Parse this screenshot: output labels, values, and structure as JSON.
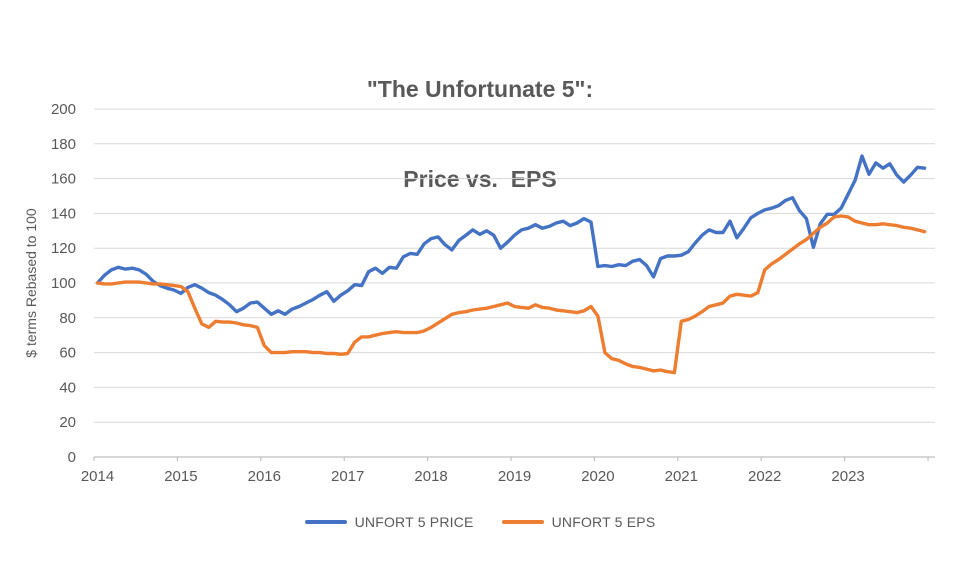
{
  "chart_data": {
    "type": "line",
    "title_line1": "\"The Unfortunate 5\":",
    "title_line2": "Price vs.  EPS",
    "ylabel": "$ terms Rebased to 100",
    "ylim": [
      0,
      200
    ],
    "y_ticks": [
      0,
      20,
      40,
      60,
      80,
      100,
      120,
      140,
      160,
      180,
      200
    ],
    "x_tick_labels": [
      "2014",
      "2015",
      "2016",
      "2017",
      "2018",
      "2019",
      "2020",
      "2021",
      "2022",
      "2023"
    ],
    "x_frequency": "monthly",
    "x_range": "Jan 2014 - Dec 2023",
    "grid": "horizontal",
    "legend_position": "bottom",
    "series": [
      {
        "name": "UNFORT 5 PRICE",
        "color": "#4472C4",
        "values": [
          100,
          104.5,
          107.5,
          109,
          108,
          108.5,
          107.5,
          105,
          101,
          98.5,
          97,
          96,
          94,
          97.5,
          99,
          97,
          94.5,
          93,
          90.5,
          87.5,
          83.5,
          85.5,
          88.5,
          89,
          85.5,
          82,
          84,
          82,
          85,
          86.5,
          88.5,
          90.5,
          93,
          95,
          89.5,
          93,
          95.5,
          99,
          98.5,
          106.5,
          108.5,
          105.5,
          109,
          108.5,
          115,
          117,
          116.5,
          122.5,
          125.5,
          126.5,
          122,
          119,
          124.5,
          127.5,
          130.5,
          128,
          130,
          127.5,
          120,
          123.5,
          127.5,
          130.5,
          131.5,
          133.5,
          131.5,
          132.5,
          134.5,
          135.5,
          133,
          134.5,
          137,
          135,
          109.5,
          110,
          109.5,
          110.5,
          110,
          112.5,
          113.5,
          110,
          103.5,
          114,
          115.5,
          115.5,
          116,
          118,
          123,
          127.5,
          130.5,
          129,
          129,
          135.5,
          126,
          131.5,
          137.5,
          140,
          142,
          143,
          144.5,
          147.5,
          149,
          141.5,
          137,
          120.5,
          134,
          139.5,
          139.5,
          143,
          151,
          159,
          173,
          162.5,
          169,
          166,
          168.5,
          162,
          158,
          162,
          166.5,
          166
        ]
      },
      {
        "name": "UNFORT 5 EPS",
        "color": "#ED7D31",
        "values": [
          100,
          99.5,
          99.5,
          100,
          100.5,
          100.5,
          100.5,
          100,
          99.5,
          99.5,
          99,
          98.5,
          98,
          95,
          85.5,
          76.5,
          74.5,
          78,
          77.5,
          77.5,
          77,
          76,
          75.5,
          74.5,
          64,
          60,
          60,
          60,
          60.5,
          60.5,
          60.5,
          60,
          60,
          59.5,
          59.5,
          59,
          59.5,
          66,
          69,
          69,
          70,
          71,
          71.5,
          72,
          71.5,
          71.5,
          71.5,
          72.5,
          74.5,
          77,
          79.5,
          82,
          83,
          83.5,
          84.5,
          85,
          85.5,
          86.5,
          87.5,
          88.5,
          86.5,
          86,
          85.5,
          87.5,
          86,
          85.5,
          84.5,
          84,
          83.5,
          83,
          84,
          86.5,
          81,
          60,
          56.5,
          55.5,
          53.5,
          52,
          51.5,
          50.5,
          49.5,
          50,
          49,
          48.5,
          78,
          79,
          81,
          83.5,
          86.5,
          87.5,
          88.5,
          92.5,
          93.5,
          93,
          92.5,
          94.5,
          107.5,
          111,
          113.5,
          116.5,
          119.5,
          122.5,
          125,
          128.5,
          132,
          134.5,
          138,
          138.5,
          138,
          135.5,
          134.5,
          133.5,
          133.5,
          134,
          133.5,
          133,
          132,
          131.5,
          130.5,
          129.5
        ]
      }
    ]
  },
  "colors": {
    "text": "#595959",
    "gridline": "#D9D9D9",
    "axis": "#BFBFBF",
    "background": "#FFFFFF"
  }
}
